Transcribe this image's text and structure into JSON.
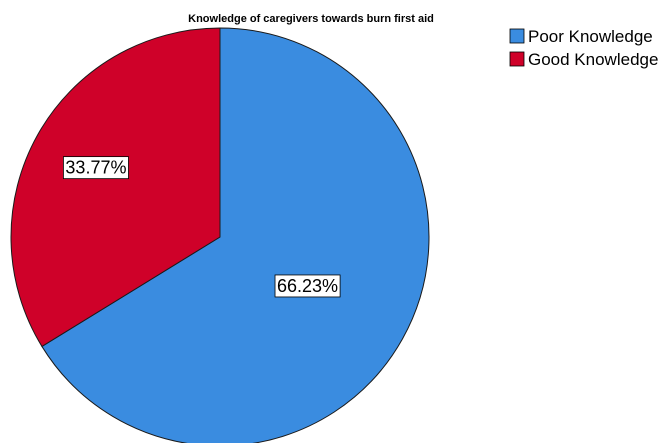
{
  "chart_data": {
    "type": "pie",
    "title": "Knowledge of caregivers towards burn first aid",
    "slices": [
      {
        "label": "Poor Knowledge",
        "value": 66.23,
        "display": "66.23%",
        "color": "#3a8ce0"
      },
      {
        "label": "Good Knowledge",
        "value": 33.77,
        "display": "33.77%",
        "color": "#cf0129"
      }
    ],
    "start_angle_deg": 0,
    "direction": "clockwise",
    "legend_position": "top-right"
  }
}
